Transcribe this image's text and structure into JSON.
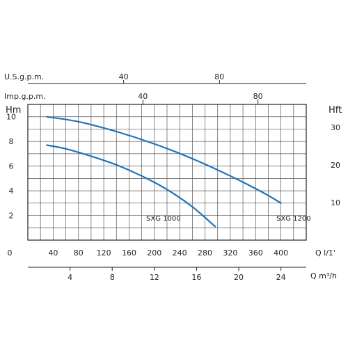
{
  "chart_data": {
    "type": "line",
    "xlabel": "Q l/1'",
    "x_ticks": [
      40,
      80,
      120,
      160,
      200,
      240,
      280,
      320,
      360,
      400
    ],
    "x_ticks_label0": "0",
    "xlim": [
      0,
      440
    ],
    "ylabel_left": "Hm",
    "y_left_ticks": [
      2,
      4,
      6,
      8,
      10
    ],
    "ylim": [
      0,
      11
    ],
    "ylabel_right": "Hft",
    "y_right_ticks": [
      10,
      20,
      30
    ],
    "axis_m3h": {
      "label": "Q m³/h",
      "ticks": [
        4,
        8,
        12,
        16,
        20,
        24
      ]
    },
    "axis_usgpm": {
      "label": "U.S.g.p.m.",
      "ticks": [
        40,
        80
      ]
    },
    "axis_impgpm": {
      "label": "Imp.g.p.m.",
      "ticks": [
        40,
        80
      ]
    },
    "grid": true,
    "series": [
      {
        "name": "SXG 1000",
        "color": "#1f73b8",
        "x": [
          30,
          60,
          100,
          140,
          180,
          220,
          260,
          296
        ],
        "y": [
          7.7,
          7.4,
          6.8,
          6.1,
          5.2,
          4.1,
          2.7,
          1.1
        ]
      },
      {
        "name": "SXG 1200",
        "color": "#1f73b8",
        "x": [
          30,
          80,
          140,
          200,
          260,
          320,
          370,
          400
        ],
        "y": [
          10.0,
          9.6,
          8.8,
          7.8,
          6.6,
          5.2,
          3.9,
          3.0
        ]
      }
    ]
  }
}
